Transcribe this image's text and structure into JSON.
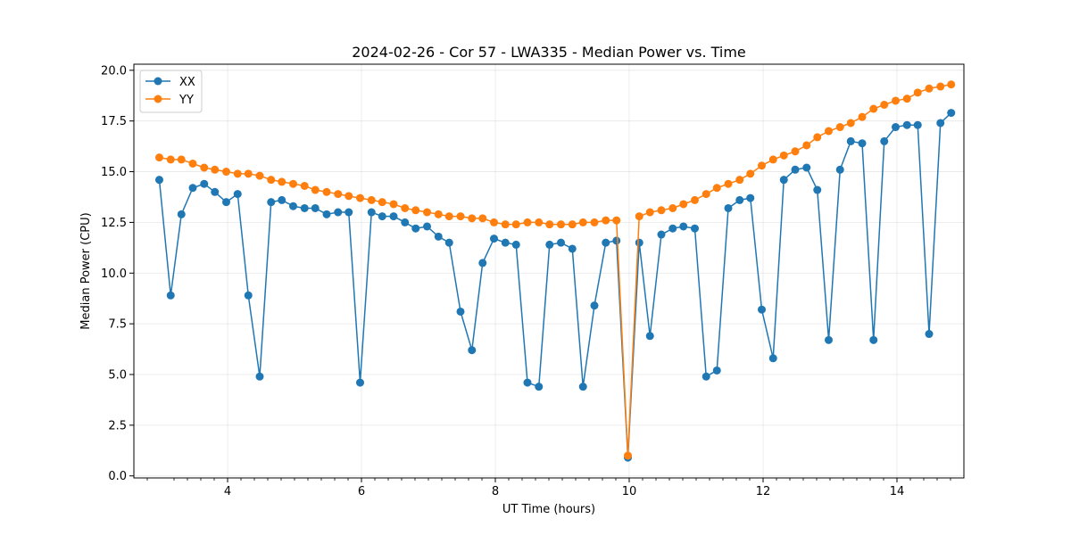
{
  "chart_data": {
    "type": "line",
    "title": "2024-02-26 - Cor 57 - LWA335 - Median Power vs. Time",
    "xlabel": "UT Time (hours)",
    "ylabel": "Median Power (CPU)",
    "xlim": [
      2.6,
      15.0
    ],
    "ylim": [
      -0.1,
      20.3
    ],
    "grid": true,
    "legend_position": "upper-left",
    "x_ticks": [
      4,
      6,
      8,
      10,
      12,
      14
    ],
    "x_tick_labels": [
      "4",
      "6",
      "8",
      "10",
      "12",
      "14"
    ],
    "x_minor_ticks": [
      2.8,
      3.2,
      3.4,
      3.6,
      3.8,
      4.2,
      4.4,
      4.6,
      4.8,
      5.0,
      5.2,
      5.4,
      5.6,
      5.8,
      6.2,
      6.4,
      6.6,
      6.8,
      7.0,
      7.2,
      7.4,
      7.6,
      7.8,
      8.2,
      8.4,
      8.6,
      8.8,
      9.0,
      9.2,
      9.4,
      9.6,
      9.8,
      10.2,
      10.4,
      10.6,
      10.8,
      11.0,
      11.2,
      11.4,
      11.6,
      11.8,
      12.2,
      12.4,
      12.6,
      12.8,
      13.0,
      13.2,
      13.4,
      13.6,
      13.8,
      14.2,
      14.4,
      14.6,
      14.8
    ],
    "y_ticks": [
      0,
      2.5,
      5,
      7.5,
      10,
      12.5,
      15,
      17.5,
      20
    ],
    "y_tick_labels": [
      "0.0",
      "2.5",
      "5.0",
      "7.5",
      "10.0",
      "12.5",
      "15.0",
      "17.5",
      "20.0"
    ],
    "x": [
      2.98,
      3.15,
      3.31,
      3.48,
      3.65,
      3.81,
      3.98,
      4.15,
      4.31,
      4.48,
      4.65,
      4.81,
      4.98,
      5.15,
      5.31,
      5.48,
      5.65,
      5.81,
      5.98,
      6.15,
      6.31,
      6.48,
      6.65,
      6.81,
      6.98,
      7.15,
      7.31,
      7.48,
      7.65,
      7.81,
      7.98,
      8.15,
      8.31,
      8.48,
      8.65,
      8.81,
      8.98,
      9.15,
      9.31,
      9.48,
      9.65,
      9.81,
      9.98,
      10.15,
      10.31,
      10.48,
      10.65,
      10.81,
      10.98,
      11.15,
      11.31,
      11.48,
      11.65,
      11.81,
      11.98,
      12.15,
      12.31,
      12.48,
      12.65,
      12.81,
      12.98,
      13.15,
      13.31,
      13.48,
      13.65,
      13.81,
      13.98,
      14.15,
      14.31,
      14.48,
      14.65,
      14.81
    ],
    "series": [
      {
        "name": "XX",
        "color": "#1f77b4",
        "values": [
          14.6,
          8.9,
          12.9,
          14.2,
          14.4,
          14.0,
          13.5,
          13.9,
          8.9,
          4.9,
          13.5,
          13.6,
          13.3,
          13.2,
          13.2,
          12.9,
          13.0,
          13.0,
          4.6,
          13.0,
          12.8,
          12.8,
          12.5,
          12.2,
          12.3,
          11.8,
          11.5,
          8.1,
          6.2,
          10.5,
          11.7,
          11.5,
          11.4,
          4.6,
          4.4,
          11.4,
          11.5,
          11.2,
          4.4,
          8.4,
          11.5,
          11.6,
          0.9,
          11.5,
          6.9,
          11.9,
          12.2,
          12.3,
          12.2,
          4.9,
          5.2,
          13.2,
          13.6,
          13.7,
          8.2,
          5.8,
          14.6,
          15.1,
          15.2,
          14.1,
          6.7,
          15.1,
          16.5,
          16.4,
          6.7,
          16.5,
          17.2,
          17.3,
          17.3,
          7.0,
          17.4,
          17.9
        ]
      },
      {
        "name": "YY",
        "color": "#ff7f0e",
        "values": [
          15.7,
          15.6,
          15.6,
          15.4,
          15.2,
          15.1,
          15.0,
          14.9,
          14.9,
          14.8,
          14.6,
          14.5,
          14.4,
          14.3,
          14.1,
          14.0,
          13.9,
          13.8,
          13.7,
          13.6,
          13.5,
          13.4,
          13.2,
          13.1,
          13.0,
          12.9,
          12.8,
          12.8,
          12.7,
          12.7,
          12.5,
          12.4,
          12.4,
          12.5,
          12.5,
          12.4,
          12.4,
          12.4,
          12.5,
          12.5,
          12.6,
          12.6,
          1.0,
          12.8,
          13.0,
          13.1,
          13.2,
          13.4,
          13.6,
          13.9,
          14.2,
          14.4,
          14.6,
          14.9,
          15.3,
          15.6,
          15.8,
          16.0,
          16.3,
          16.7,
          17.0,
          17.2,
          17.4,
          17.7,
          18.1,
          18.3,
          18.5,
          18.6,
          18.9,
          19.1,
          19.2,
          19.3
        ]
      }
    ]
  }
}
